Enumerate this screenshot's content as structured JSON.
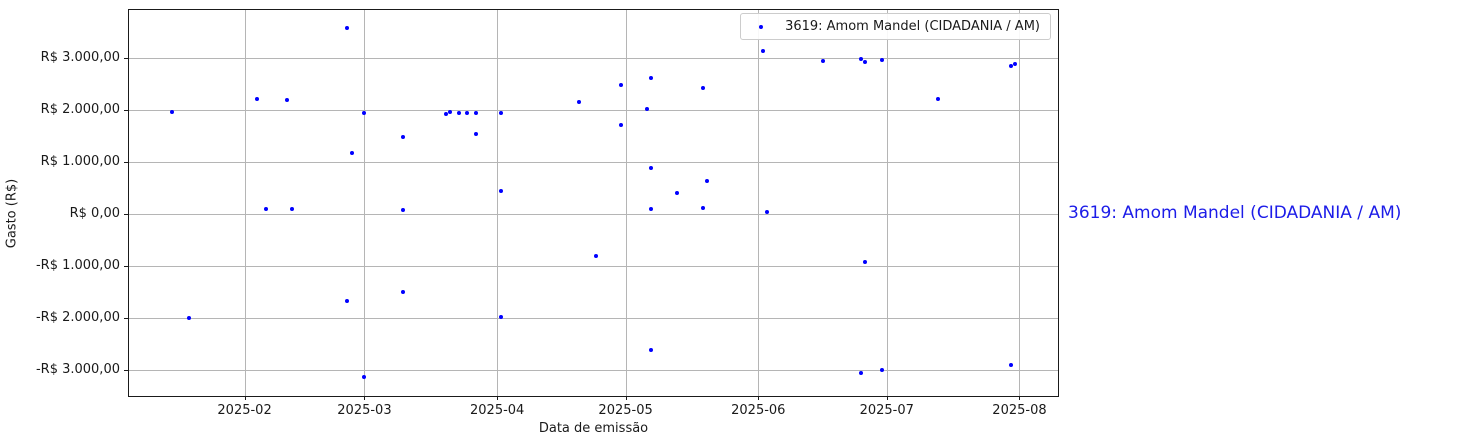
{
  "side_label": {
    "text": "3619: Amom Mandel (CIDADANIA / AM)",
    "color": "#1c1ce8"
  },
  "chart_data": {
    "type": "scatter",
    "title": "",
    "xlabel": "Data de emissão",
    "ylabel": "Gasto (R$)",
    "grid": true,
    "legend": {
      "label": "3619: Amom Mandel (CIDADANIA / AM)",
      "position": "upper right",
      "marker_color": "#0000ff"
    },
    "marker": {
      "color": "#0000ff",
      "size": 4
    },
    "xlim": [
      "2025-01-05",
      "2025-08-10"
    ],
    "ylim": [
      -3500,
      3930
    ],
    "x_ticks": [
      {
        "date": "2025-02-01",
        "label": "2025-02"
      },
      {
        "date": "2025-03-01",
        "label": "2025-03"
      },
      {
        "date": "2025-04-01",
        "label": "2025-04"
      },
      {
        "date": "2025-05-01",
        "label": "2025-05"
      },
      {
        "date": "2025-06-01",
        "label": "2025-06"
      },
      {
        "date": "2025-07-01",
        "label": "2025-07"
      },
      {
        "date": "2025-08-01",
        "label": "2025-08"
      }
    ],
    "y_ticks": [
      {
        "value": 3000,
        "label": "R$ 3.000,00"
      },
      {
        "value": 2000,
        "label": "R$ 2.000,00"
      },
      {
        "value": 1000,
        "label": "R$ 1.000,00"
      },
      {
        "value": 0,
        "label": "R$ 0,00"
      },
      {
        "value": -1000,
        "label": "-R$ 1.000,00"
      },
      {
        "value": -2000,
        "label": "-R$ 2.000,00"
      },
      {
        "value": -3000,
        "label": "-R$ 3.000,00"
      }
    ],
    "series": [
      {
        "name": "3619: Amom Mandel (CIDADANIA / AM)",
        "points": [
          {
            "date": "2025-01-15",
            "value": 1960
          },
          {
            "date": "2025-01-19",
            "value": -2000
          },
          {
            "date": "2025-02-04",
            "value": 2220
          },
          {
            "date": "2025-02-06",
            "value": 90
          },
          {
            "date": "2025-02-11",
            "value": 2190
          },
          {
            "date": "2025-02-12",
            "value": 90
          },
          {
            "date": "2025-02-25",
            "value": 3590
          },
          {
            "date": "2025-02-25",
            "value": -1670
          },
          {
            "date": "2025-02-26",
            "value": 1180
          },
          {
            "date": "2025-03-01",
            "value": 1950
          },
          {
            "date": "2025-03-01",
            "value": -3140
          },
          {
            "date": "2025-03-10",
            "value": 1480
          },
          {
            "date": "2025-03-10",
            "value": 75
          },
          {
            "date": "2025-03-10",
            "value": -1500
          },
          {
            "date": "2025-03-20",
            "value": 1930
          },
          {
            "date": "2025-03-21",
            "value": 1965
          },
          {
            "date": "2025-03-23",
            "value": 1950
          },
          {
            "date": "2025-03-25",
            "value": 1950
          },
          {
            "date": "2025-03-27",
            "value": 1950
          },
          {
            "date": "2025-03-27",
            "value": 1535
          },
          {
            "date": "2025-04-02",
            "value": 1950
          },
          {
            "date": "2025-04-02",
            "value": 440
          },
          {
            "date": "2025-04-02",
            "value": -1980
          },
          {
            "date": "2025-04-20",
            "value": 2160
          },
          {
            "date": "2025-04-24",
            "value": -800
          },
          {
            "date": "2025-04-30",
            "value": 2480
          },
          {
            "date": "2025-04-30",
            "value": 1710
          },
          {
            "date": "2025-05-06",
            "value": 2020
          },
          {
            "date": "2025-05-07",
            "value": 2620
          },
          {
            "date": "2025-05-07",
            "value": 880
          },
          {
            "date": "2025-05-07",
            "value": 100
          },
          {
            "date": "2025-05-07",
            "value": -2620
          },
          {
            "date": "2025-05-13",
            "value": 400
          },
          {
            "date": "2025-05-19",
            "value": 2430
          },
          {
            "date": "2025-05-19",
            "value": 110
          },
          {
            "date": "2025-05-20",
            "value": 630
          },
          {
            "date": "2025-06-02",
            "value": 3140
          },
          {
            "date": "2025-06-03",
            "value": 50
          },
          {
            "date": "2025-06-16",
            "value": 2950
          },
          {
            "date": "2025-06-25",
            "value": 2990
          },
          {
            "date": "2025-06-25",
            "value": -3050
          },
          {
            "date": "2025-06-26",
            "value": 2930
          },
          {
            "date": "2025-06-26",
            "value": -930
          },
          {
            "date": "2025-06-30",
            "value": 2960
          },
          {
            "date": "2025-06-30",
            "value": -3000
          },
          {
            "date": "2025-07-13",
            "value": 2210
          },
          {
            "date": "2025-07-30",
            "value": 2850
          },
          {
            "date": "2025-07-30",
            "value": -2900
          },
          {
            "date": "2025-07-31",
            "value": 2890
          }
        ]
      }
    ]
  }
}
